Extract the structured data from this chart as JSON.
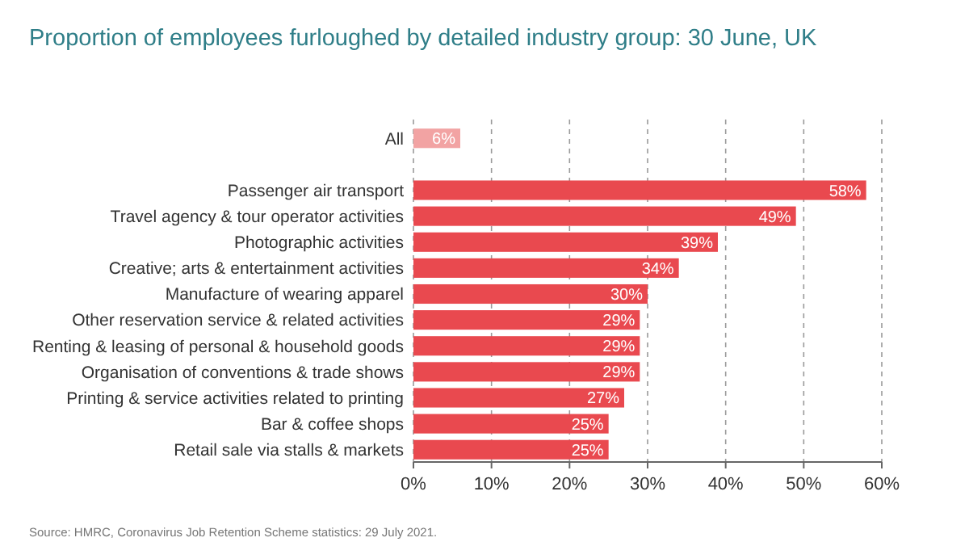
{
  "chart_data": {
    "type": "bar",
    "orientation": "horizontal",
    "title": "Proportion of employees furloughed by detailed industry group: 30 June, UK",
    "categories": [
      "All",
      null,
      "Passenger air transport",
      "Travel agency & tour operator activities",
      "Photographic activities",
      "Creative; arts & entertainment activities",
      "Manufacture of wearing apparel",
      "Other reservation service & related activities",
      "Renting & leasing of personal & household goods",
      "Organisation of conventions & trade shows",
      "Printing & service activities related to printing",
      "Bar & coffee shops",
      "Retail sale via stalls & markets"
    ],
    "values": [
      6,
      null,
      58,
      49,
      39,
      34,
      30,
      29,
      29,
      29,
      27,
      25,
      25
    ],
    "colors": [
      "#f2a3a3",
      null,
      "#e9494f",
      "#e9494f",
      "#e9494f",
      "#e9494f",
      "#e9494f",
      "#e9494f",
      "#e9494f",
      "#e9494f",
      "#e9494f",
      "#e9494f",
      "#e9494f"
    ],
    "value_labels": [
      "6%",
      null,
      "58%",
      "49%",
      "39%",
      "34%",
      "30%",
      "29%",
      "29%",
      "29%",
      "27%",
      "25%",
      "25%"
    ],
    "xlim": [
      0,
      60
    ],
    "xticks": [
      {
        "value": 0,
        "label": "0%"
      },
      {
        "value": 10,
        "label": "10%"
      },
      {
        "value": 20,
        "label": "20%"
      },
      {
        "value": 30,
        "label": "30%"
      },
      {
        "value": 40,
        "label": "40%"
      },
      {
        "value": 50,
        "label": "50%"
      },
      {
        "value": 60,
        "label": "60%"
      }
    ],
    "grid": "x",
    "annotations": [
      "Source: HMRC, Coronavirus Job Retention Scheme statistics: 29 July 2021."
    ]
  }
}
